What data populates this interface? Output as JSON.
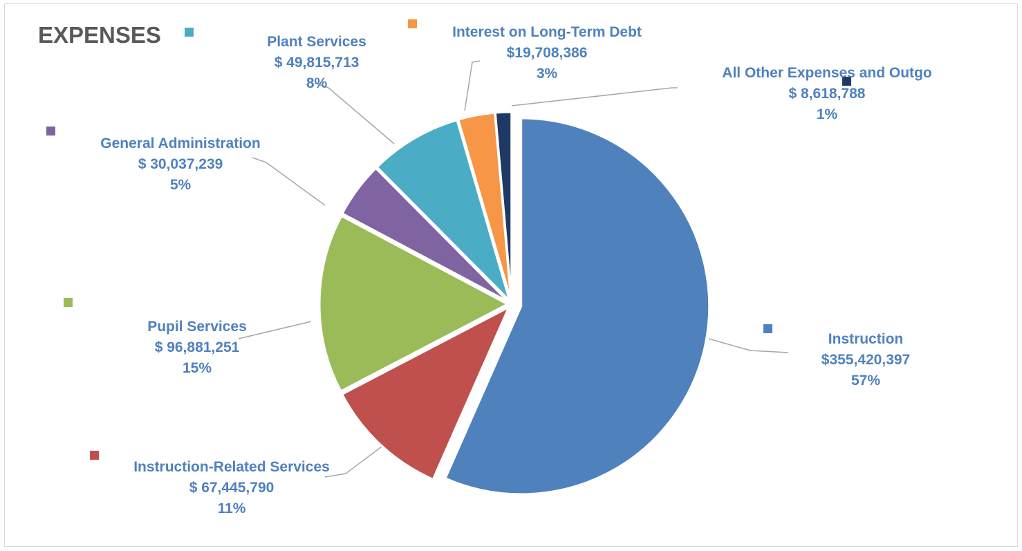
{
  "chart_data": {
    "type": "pie",
    "title": "EXPENSES",
    "slices": [
      {
        "name": "Instruction",
        "amount": "$355,420,397",
        "value": 355420397,
        "percent": "57%",
        "color": "#4f81bd"
      },
      {
        "name": "Instruction-Related Services",
        "amount": "$ 67,445,790",
        "value": 67445790,
        "percent": "11%",
        "color": "#c0504d"
      },
      {
        "name": "Pupil Services",
        "amount": "$ 96,881,251",
        "value": 96881251,
        "percent": "15%",
        "color": "#9bbb59"
      },
      {
        "name": "General Administration",
        "amount": "$ 30,037,239",
        "value": 30037239,
        "percent": "5%",
        "color": "#8064a2"
      },
      {
        "name": "Plant Services",
        "amount": "$ 49,815,713",
        "value": 49815713,
        "percent": "8%",
        "color": "#4bacc6"
      },
      {
        "name": "Interest on Long-Term Debt",
        "amount": "$19,708,386",
        "value": 19708386,
        "percent": "3%",
        "color": "#f79646"
      },
      {
        "name": "All Other Expenses and Outgo",
        "amount": "$ 8,618,788",
        "value": 8618788,
        "percent": "1%",
        "color": "#1f3864"
      }
    ]
  }
}
